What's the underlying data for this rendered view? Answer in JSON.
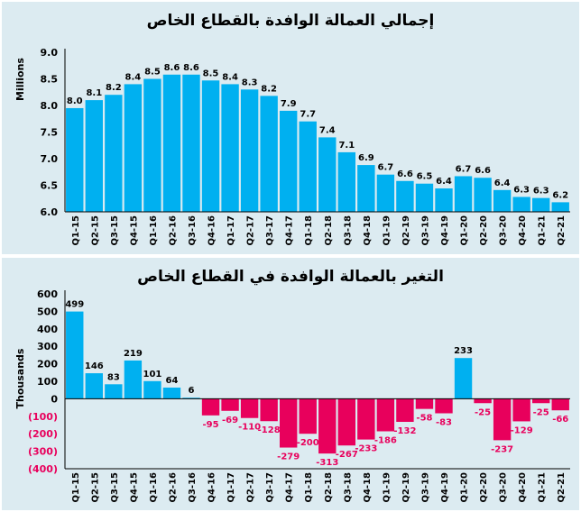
{
  "chart_data": [
    {
      "type": "bar",
      "title": "إجمالي العمالة الوافدة بالقطاع الخاص",
      "ylabel": "Millions",
      "xlabel": "",
      "ylim": [
        6.0,
        9.0
      ],
      "yticks": [
        "6.0",
        "6.5",
        "7.0",
        "7.5",
        "8.0",
        "8.5",
        "9.0"
      ],
      "bar_color": "#00b0f0",
      "categories": [
        "Q1-15",
        "Q2-15",
        "Q3-15",
        "Q4-15",
        "Q1-16",
        "Q2-16",
        "Q3-16",
        "Q4-16",
        "Q1-17",
        "Q2-17",
        "Q3-17",
        "Q4-17",
        "Q1-18",
        "Q2-18",
        "Q3-18",
        "Q4-18",
        "Q1-19",
        "Q2-19",
        "Q3-19",
        "Q4-19",
        "Q1-20",
        "Q2-20",
        "Q3-20",
        "Q4-20",
        "Q1-21",
        "Q2-21"
      ],
      "values": [
        7.95,
        8.1,
        8.2,
        8.4,
        8.5,
        8.58,
        8.58,
        8.47,
        8.4,
        8.3,
        8.18,
        7.9,
        7.7,
        7.4,
        7.12,
        6.88,
        6.7,
        6.58,
        6.53,
        6.44,
        6.67,
        6.64,
        6.41,
        6.28,
        6.26,
        6.18
      ],
      "labels": [
        "8.0",
        "8.1",
        "8.2",
        "8.4",
        "8.5",
        "8.6",
        "8.6",
        "8.5",
        "8.4",
        "8.3",
        "8.2",
        "7.9",
        "7.7",
        "7.4",
        "7.1",
        "6.9",
        "6.7",
        "6.6",
        "6.5",
        "6.4",
        "6.7",
        "6.6",
        "6.4",
        "6.3",
        "6.3",
        "6.2"
      ]
    },
    {
      "type": "bar",
      "title": "التغير بالعمالة الوافدة في القطاع الخاص",
      "ylabel": "Thousands",
      "xlabel": "",
      "ylim": [
        -400,
        600
      ],
      "yticks": [
        "(400)",
        "(300)",
        "(200)",
        "(100)",
        "0",
        "100",
        "200",
        "300",
        "400",
        "500",
        "600"
      ],
      "positive_color": "#00b0f0",
      "negative_color": "#e8005c",
      "categories": [
        "Q1-15",
        "Q2-15",
        "Q3-15",
        "Q4-15",
        "Q1-16",
        "Q2-16",
        "Q3-16",
        "Q4-16",
        "Q1-17",
        "Q2-17",
        "Q3-17",
        "Q4-17",
        "Q1-18",
        "Q2-18",
        "Q3-18",
        "Q4-18",
        "Q1-19",
        "Q2-19",
        "Q3-19",
        "Q4-19",
        "Q1-20",
        "Q2-20",
        "Q3-20",
        "Q4-20",
        "Q1-21",
        "Q2-21"
      ],
      "values": [
        499,
        146,
        83,
        219,
        101,
        64,
        6,
        -95,
        -69,
        -110,
        -128,
        -279,
        -200,
        -313,
        -267,
        -233,
        -186,
        -132,
        -58,
        -83,
        233,
        -25,
        -237,
        -129,
        -25,
        -66
      ],
      "labels": [
        "499",
        "146",
        "83",
        "219",
        "101",
        "64",
        "6",
        "-95",
        "-69",
        "-110",
        "-128",
        "-279",
        "-200",
        "-313",
        "-267",
        "-233",
        "-186",
        "-132",
        "-58",
        "-83",
        "233",
        "-25",
        "-237",
        "-129",
        "-25",
        "-66"
      ]
    }
  ]
}
